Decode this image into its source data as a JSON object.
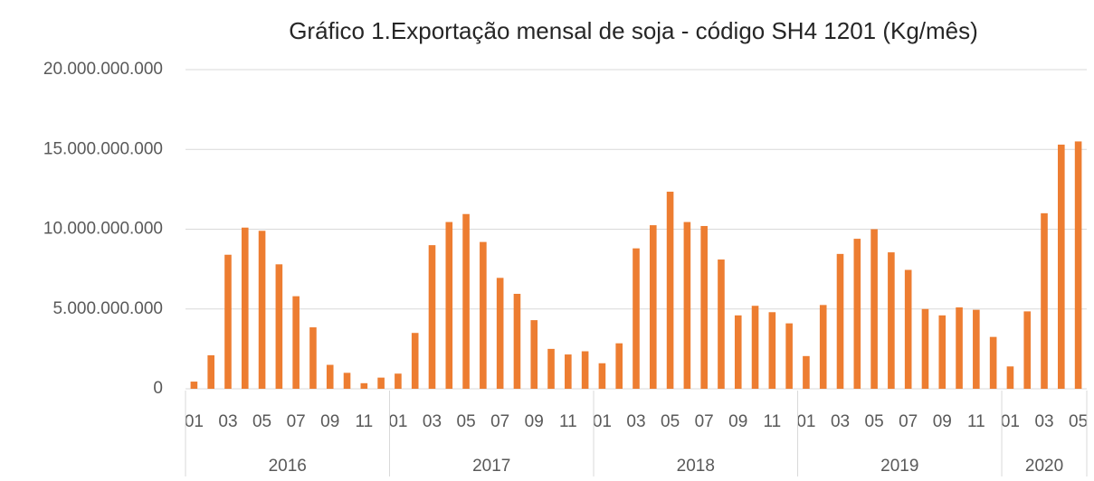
{
  "chart_data": {
    "type": "bar",
    "title": "Gráfico 1.Exportação mensal de soja - código SH4 1201 (Kg/mês)",
    "color": "#ed7d31",
    "categories": [
      "01",
      null,
      "03",
      null,
      "05",
      null,
      "07",
      null,
      "09",
      null,
      "11",
      null,
      "01",
      null,
      "03",
      null,
      "05",
      null,
      "07",
      null,
      "09",
      null,
      "11",
      null,
      "01",
      null,
      "03",
      null,
      "05",
      null,
      "07",
      null,
      "09",
      null,
      "11",
      null,
      "01",
      null,
      "03",
      null,
      "05",
      null,
      "07",
      null,
      "09",
      null,
      "11",
      null,
      "01",
      null,
      "03",
      null,
      "05"
    ],
    "years": [
      "2016",
      "2017",
      "2018",
      "2019",
      "2020"
    ],
    "values": [
      450000000,
      2100000000,
      8400000000,
      10100000000,
      9900000000,
      7800000000,
      5800000000,
      3850000000,
      1500000000,
      1000000000,
      350000000,
      700000000,
      950000000,
      3500000000,
      9000000000,
      10450000000,
      10950000000,
      9200000000,
      6950000000,
      5950000000,
      4300000000,
      2500000000,
      2150000000,
      2350000000,
      1600000000,
      2850000000,
      8800000000,
      10250000000,
      12350000000,
      10450000000,
      10200000000,
      8100000000,
      4600000000,
      5200000000,
      4800000000,
      4100000000,
      2050000000,
      5250000000,
      8450000000,
      9400000000,
      10000000000,
      8550000000,
      7450000000,
      5000000000,
      4600000000,
      5100000000,
      4950000000,
      3250000000,
      1400000000,
      4850000000,
      11000000000,
      15300000000,
      15500000000
    ],
    "ylim": [
      0,
      20000000000
    ],
    "yticks": [
      0,
      {
        "value": 5000000000,
        "label": "5.000.000.000"
      },
      {
        "value": 10000000000,
        "label": "10.000.000.000"
      },
      {
        "value": 15000000000,
        "label": "15.000.000.000"
      },
      {
        "value": 20000000000,
        "label": "20.000.000.000"
      }
    ],
    "grid": true
  }
}
